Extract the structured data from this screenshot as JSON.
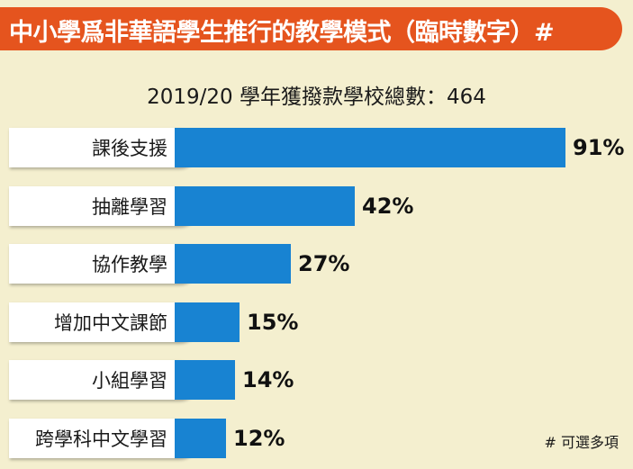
{
  "header": {
    "title": "中小學爲非華語學生推行的教學模式（臨時數字）#",
    "subtitle": "2019/20 學年獲撥款學校總數：464"
  },
  "chart_data": {
    "type": "bar",
    "orientation": "horizontal",
    "categories": [
      "課後支援",
      "抽離學習",
      "協作教學",
      "增加中文課節",
      "小組學習",
      "跨學科中文學習"
    ],
    "values": [
      91,
      42,
      27,
      15,
      14,
      12
    ],
    "value_labels": [
      "91%",
      "42%",
      "27%",
      "15%",
      "14%",
      "12%"
    ],
    "unit": "%",
    "xlim": [
      0,
      100
    ],
    "bar_color": "#1883d2",
    "grid": false
  },
  "footnote": "# 可選多項",
  "colors": {
    "title_bar": "#e5541e",
    "background": "#f4efcf",
    "bar": "#1883d2"
  }
}
